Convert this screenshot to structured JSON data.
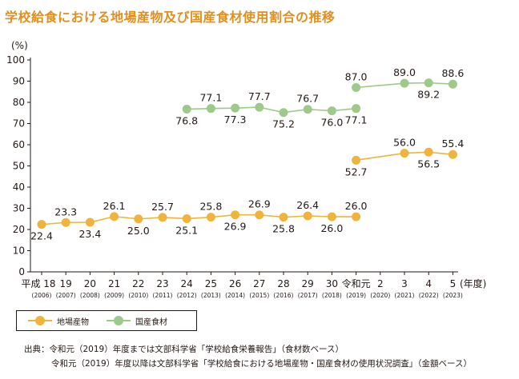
{
  "chart_data": {
    "type": "line",
    "title": "学校給食における地場産物及び国産食材使用割合の推移",
    "ylabel": "(%)",
    "xlabel": "(年度)",
    "ylim": [
      0,
      100
    ],
    "yticks": [
      0,
      10,
      20,
      30,
      40,
      50,
      60,
      70,
      80,
      90,
      100
    ],
    "categories": [
      "平成 18",
      "19",
      "20",
      "21",
      "22",
      "23",
      "24",
      "25",
      "26",
      "27",
      "28",
      "29",
      "30",
      "令和元",
      "2",
      "3",
      "4",
      "5"
    ],
    "years": [
      "(2006)",
      "(2007)",
      "(2008)",
      "(2009)",
      "(2010)",
      "(2011)",
      "(2012)",
      "(2013)",
      "(2014)",
      "(2015)",
      "(2016)",
      "(2017)",
      "(2018)",
      "(2019)",
      "(2020)",
      "(2021)",
      "(2022)",
      "(2023)"
    ],
    "series": [
      {
        "name": "地場産物",
        "color": "#f0b43c",
        "segments": [
          {
            "start": 0,
            "values": [
              22.4,
              23.3,
              23.4,
              26.1,
              25.0,
              25.7,
              25.1,
              25.8,
              26.9,
              26.9,
              25.8,
              26.4,
              26.0,
              26.0
            ]
          },
          {
            "start": 13,
            "values": [
              52.7,
              null,
              56.0,
              56.5,
              55.4
            ]
          }
        ],
        "labels": [
          {
            "i": 0,
            "v": 22.4,
            "text": "22.4",
            "pos": "below"
          },
          {
            "i": 1,
            "v": 23.3,
            "text": "23.3",
            "pos": "above"
          },
          {
            "i": 2,
            "v": 23.4,
            "text": "23.4",
            "pos": "below"
          },
          {
            "i": 3,
            "v": 26.1,
            "text": "26.1",
            "pos": "above"
          },
          {
            "i": 4,
            "v": 25.0,
            "text": "25.0",
            "pos": "below"
          },
          {
            "i": 5,
            "v": 25.7,
            "text": "25.7",
            "pos": "above"
          },
          {
            "i": 6,
            "v": 25.1,
            "text": "25.1",
            "pos": "below"
          },
          {
            "i": 7,
            "v": 25.8,
            "text": "25.8",
            "pos": "above"
          },
          {
            "i": 8,
            "v": 26.9,
            "text": "26.9",
            "pos": "below"
          },
          {
            "i": 9,
            "v": 26.9,
            "text": "26.9",
            "pos": "above"
          },
          {
            "i": 10,
            "v": 25.8,
            "text": "25.8",
            "pos": "below"
          },
          {
            "i": 11,
            "v": 26.4,
            "text": "26.4",
            "pos": "above"
          },
          {
            "i": 12,
            "v": 26.0,
            "text": "26.0",
            "pos": "below"
          },
          {
            "i": 13,
            "v": 26.0,
            "text": "26.0",
            "pos": "above"
          },
          {
            "i": 13,
            "v": 52.7,
            "text": "52.7",
            "pos": "below"
          },
          {
            "i": 15,
            "v": 56.0,
            "text": "56.0",
            "pos": "above"
          },
          {
            "i": 16,
            "v": 56.5,
            "text": "56.5",
            "pos": "below"
          },
          {
            "i": 17,
            "v": 55.4,
            "text": "55.4",
            "pos": "above"
          }
        ]
      },
      {
        "name": "国産食材",
        "color": "#9dca8a",
        "segments": [
          {
            "start": 6,
            "values": [
              76.8,
              77.1,
              77.3,
              77.7,
              75.2,
              76.7,
              76.0,
              77.1
            ]
          },
          {
            "start": 13,
            "values": [
              87.0,
              null,
              89.0,
              89.2,
              88.6
            ]
          }
        ],
        "labels": [
          {
            "i": 6,
            "v": 76.8,
            "text": "76.8",
            "pos": "below"
          },
          {
            "i": 7,
            "v": 77.1,
            "text": "77.1",
            "pos": "above"
          },
          {
            "i": 8,
            "v": 77.3,
            "text": "77.3",
            "pos": "below"
          },
          {
            "i": 9,
            "v": 77.7,
            "text": "77.7",
            "pos": "above"
          },
          {
            "i": 10,
            "v": 75.2,
            "text": "75.2",
            "pos": "below"
          },
          {
            "i": 11,
            "v": 76.7,
            "text": "76.7",
            "pos": "above"
          },
          {
            "i": 12,
            "v": 76.0,
            "text": "76.0",
            "pos": "below"
          },
          {
            "i": 13,
            "v": 77.1,
            "text": "77.1",
            "pos": "below"
          },
          {
            "i": 13,
            "v": 87.0,
            "text": "87.0",
            "pos": "above"
          },
          {
            "i": 15,
            "v": 89.0,
            "text": "89.0",
            "pos": "above"
          },
          {
            "i": 16,
            "v": 89.2,
            "text": "89.2",
            "pos": "below"
          },
          {
            "i": 17,
            "v": 88.6,
            "text": "88.6",
            "pos": "above"
          }
        ]
      }
    ],
    "legend": [
      "地場産物",
      "国産食材"
    ]
  },
  "source": {
    "line1": "出典：令和元（2019）年度までは文部科学省「学校給食栄養報告」（食材数ベース）",
    "line2": "令和元（2019）年度以降は文部科学省「学校給食における地場産物・国産食材の使用状況調査」（金額ベース）"
  }
}
